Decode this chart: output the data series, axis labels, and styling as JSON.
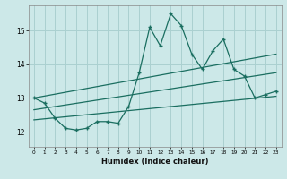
{
  "xlabel": "Humidex (Indice chaleur)",
  "ylabel": "",
  "bg_color": "#cce8e8",
  "grid_color": "#aad0d0",
  "line_color": "#1a6e60",
  "xlim": [
    -0.5,
    23.5
  ],
  "ylim": [
    11.55,
    15.75
  ],
  "yticks": [
    12,
    13,
    14,
    15
  ],
  "xticks": [
    0,
    1,
    2,
    3,
    4,
    5,
    6,
    7,
    8,
    9,
    10,
    11,
    12,
    13,
    14,
    15,
    16,
    17,
    18,
    19,
    20,
    21,
    22,
    23
  ],
  "main_x": [
    0,
    1,
    2,
    3,
    4,
    5,
    6,
    7,
    8,
    9,
    10,
    11,
    12,
    13,
    14,
    15,
    16,
    17,
    18,
    19,
    20,
    21,
    22,
    23
  ],
  "main_y": [
    13.0,
    12.85,
    12.4,
    12.1,
    12.05,
    12.1,
    12.3,
    12.3,
    12.25,
    12.75,
    13.75,
    15.1,
    14.55,
    15.5,
    15.15,
    14.3,
    13.85,
    14.4,
    14.75,
    13.85,
    13.65,
    13.0,
    13.1,
    13.2
  ],
  "trend1_x": [
    0,
    23
  ],
  "trend1_y": [
    13.0,
    14.3
  ],
  "trend2_x": [
    0,
    23
  ],
  "trend2_y": [
    12.65,
    13.75
  ],
  "trend3_x": [
    0,
    23
  ],
  "trend3_y": [
    12.35,
    13.05
  ]
}
